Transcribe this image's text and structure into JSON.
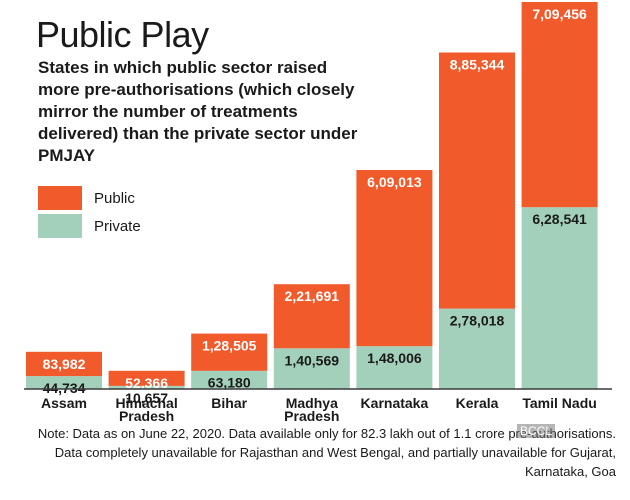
{
  "title": "Public Play",
  "subtitle": "States in which public sector raised more pre-authorisations (which closely mirror the number of treatments delivered) than the private sector under PMJAY",
  "legend": [
    {
      "label": "Public",
      "color": "#f15a2b"
    },
    {
      "label": "Private",
      "color": "#a3d0bb"
    }
  ],
  "note": "Note: Data as on June 22, 2020. Data available only for 82.3 lakh out of 1.1 crore pre-authorisations. Data completely unavailable for Rajasthan and West Bengal, and partially unavailable for Gujarat, Karnataka, Goa",
  "watermark": "BCCL",
  "chart_data": {
    "type": "bar",
    "stacked": true,
    "categories": [
      "Assam",
      "Himachal Pradesh",
      "Bihar",
      "Madhya Pradesh",
      "Karnataka",
      "Kerala",
      "Tamil Nadu"
    ],
    "category_lines": [
      [
        "Assam"
      ],
      [
        "Himachal",
        "Pradesh"
      ],
      [
        "Bihar"
      ],
      [
        "Madhya",
        "Pradesh"
      ],
      [
        "Karnataka"
      ],
      [
        "Kerala"
      ],
      [
        "Tamil Nadu"
      ]
    ],
    "series": [
      {
        "name": "Private",
        "color": "#a3d0bb",
        "values": [
          44734,
          10657,
          63180,
          140569,
          148006,
          278018,
          628541
        ],
        "labels": [
          "44,734",
          "10,657",
          "63,180",
          "1,40,569",
          "1,48,006",
          "2,78,018",
          "6,28,541"
        ],
        "label_color": "#1a1a1a"
      },
      {
        "name": "Public",
        "color": "#f15a2b",
        "values": [
          83982,
          52366,
          128505,
          221691,
          609013,
          885344,
          709456
        ],
        "labels": [
          "83,982",
          "52,366",
          "1,28,505",
          "2,21,691",
          "6,09,013",
          "8,85,344",
          "7,09,456"
        ],
        "label_color": "#ffffff"
      }
    ],
    "ylim": [
      0,
      1337885
    ],
    "grid": false,
    "legend_position": "left, below subtitle"
  }
}
